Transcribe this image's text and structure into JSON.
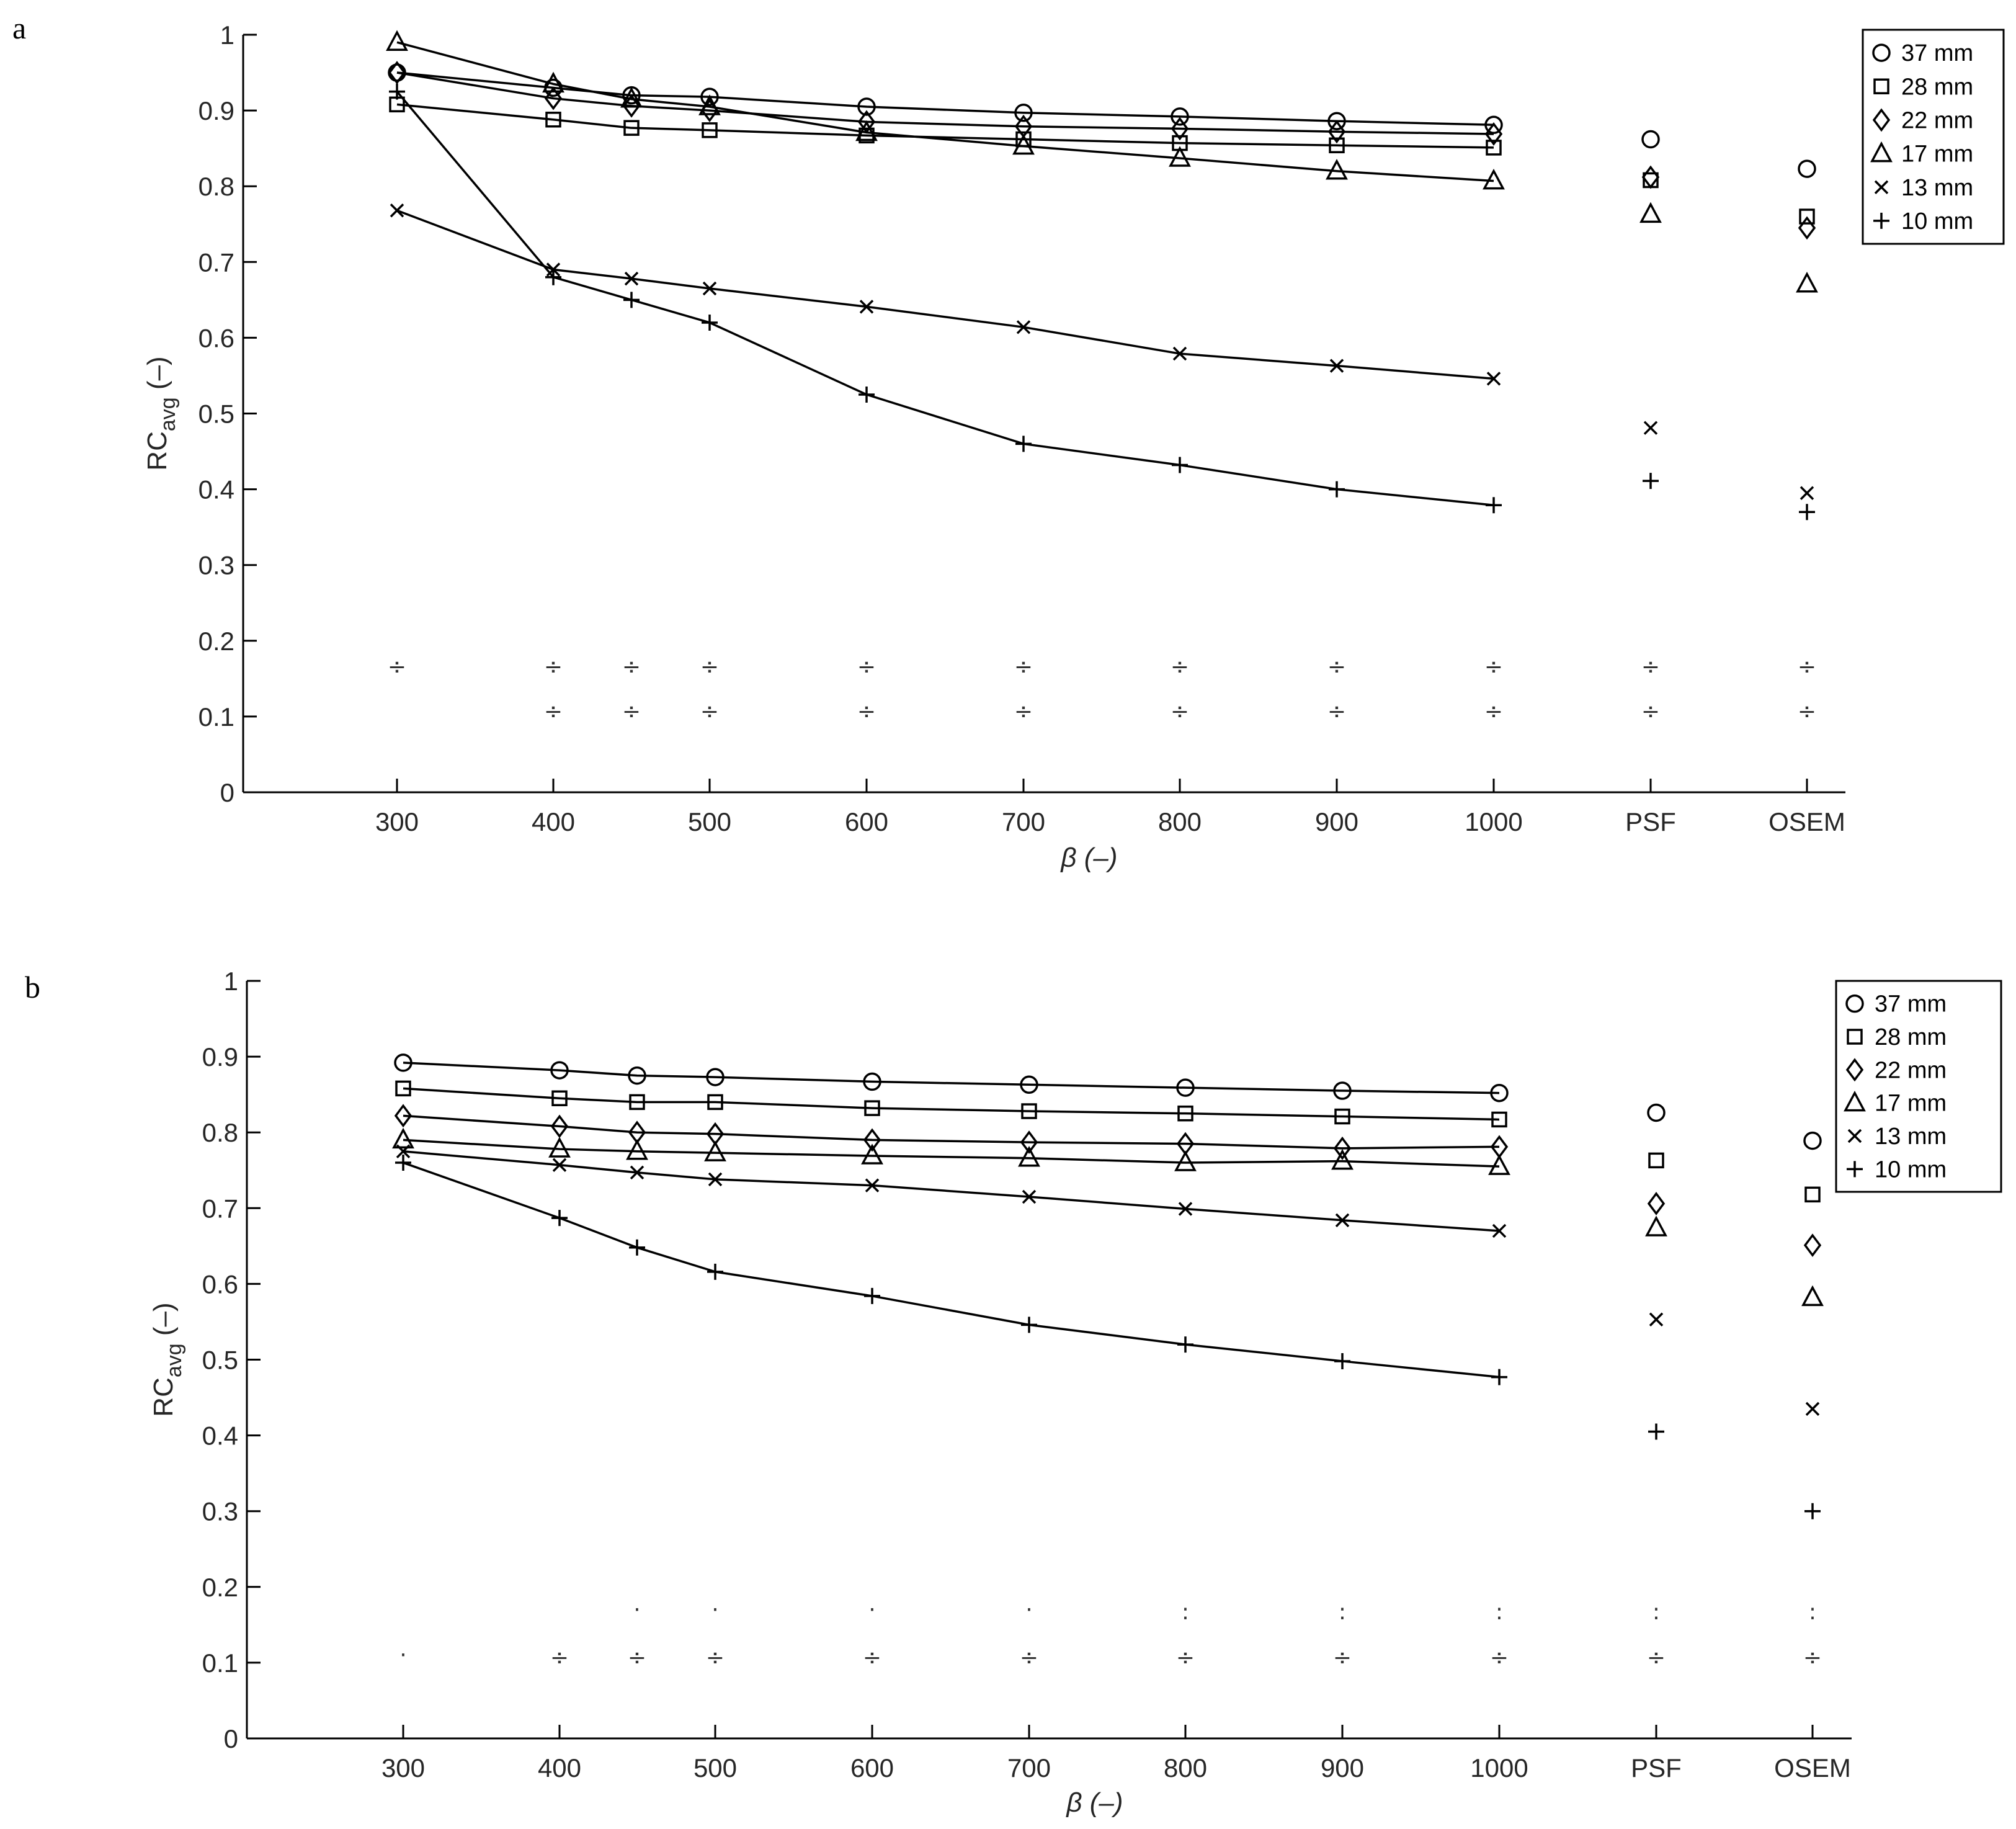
{
  "chart_data": [
    {
      "panel_label": "a",
      "type": "line",
      "x_categories": [
        "300",
        "400",
        "450",
        "500",
        "600",
        "700",
        "800",
        "900",
        "1000",
        "PSF",
        "OSEM"
      ],
      "x_tick_labels": [
        "300",
        "400",
        "500",
        "600",
        "700",
        "800",
        "900",
        "1000",
        "PSF",
        "OSEM"
      ],
      "xlabel": "β (–)",
      "ylabel": "RC",
      "ylabel_sub": "avg",
      "ylabel_unit": " (–)",
      "ylim": [
        0,
        1
      ],
      "yticks": [
        "0",
        "0.1",
        "0.2",
        "0.3",
        "0.4",
        "0.5",
        "0.6",
        "0.7",
        "0.8",
        "0.9",
        "1"
      ],
      "legend_position": "top-right",
      "series": [
        {
          "name": "37 mm",
          "marker": "circle",
          "values": [
            0.95,
            0.93,
            0.92,
            0.918,
            0.905,
            0.897,
            0.892,
            0.886,
            0.881,
            0.862,
            0.823
          ]
        },
        {
          "name": "28 mm",
          "marker": "square",
          "values": [
            0.908,
            0.888,
            0.877,
            0.874,
            0.867,
            0.862,
            0.857,
            0.854,
            0.851,
            0.808,
            0.76
          ]
        },
        {
          "name": "22 mm",
          "marker": "diamond",
          "values": [
            0.95,
            0.916,
            0.906,
            0.9,
            0.885,
            0.879,
            0.876,
            0.872,
            0.869,
            0.812,
            0.745
          ]
        },
        {
          "name": "17 mm",
          "marker": "triangle",
          "values": [
            0.99,
            0.935,
            0.915,
            0.905,
            0.871,
            0.853,
            0.837,
            0.82,
            0.807,
            0.763,
            0.671
          ]
        },
        {
          "name": "13 mm",
          "marker": "x",
          "values": [
            0.768,
            0.69,
            0.678,
            0.665,
            0.641,
            0.614,
            0.579,
            0.563,
            0.546,
            0.481,
            0.395
          ]
        },
        {
          "name": "10 mm",
          "marker": "plus",
          "values": [
            0.925,
            0.68,
            0.65,
            0.62,
            0.525,
            0.46,
            0.432,
            0.4,
            0.379,
            0.411,
            0.37
          ]
        }
      ],
      "significance_marks": [
        {
          "symbol": "÷",
          "y": 0.166,
          "x_indices": [
            0,
            1,
            2,
            3,
            4,
            5,
            6,
            7,
            8,
            9,
            10
          ]
        },
        {
          "symbol": "÷",
          "y": 0.107,
          "x_indices": [
            1,
            2,
            3,
            4,
            5,
            6,
            7,
            8,
            9,
            10
          ]
        }
      ]
    },
    {
      "panel_label": "b",
      "type": "line",
      "x_categories": [
        "300",
        "400",
        "450",
        "500",
        "600",
        "700",
        "800",
        "900",
        "1000",
        "PSF",
        "OSEM"
      ],
      "x_tick_labels": [
        "300",
        "400",
        "500",
        "600",
        "700",
        "800",
        "900",
        "1000",
        "PSF",
        "OSEM"
      ],
      "xlabel": "β (–)",
      "ylabel": "RC",
      "ylabel_sub": "avg",
      "ylabel_unit": " (–)",
      "ylim": [
        0,
        1
      ],
      "yticks": [
        "0",
        "0.1",
        "0.2",
        "0.3",
        "0.4",
        "0.5",
        "0.6",
        "0.7",
        "0.8",
        "0.9",
        "1"
      ],
      "legend_position": "top-right",
      "series": [
        {
          "name": "37 mm",
          "marker": "circle",
          "values": [
            0.892,
            0.882,
            0.875,
            0.873,
            0.867,
            0.863,
            0.859,
            0.855,
            0.852,
            0.826,
            0.789
          ]
        },
        {
          "name": "28 mm",
          "marker": "square",
          "values": [
            0.858,
            0.845,
            0.84,
            0.84,
            0.832,
            0.828,
            0.825,
            0.821,
            0.817,
            0.763,
            0.718
          ]
        },
        {
          "name": "22 mm",
          "marker": "diamond",
          "values": [
            0.822,
            0.808,
            0.8,
            0.798,
            0.79,
            0.787,
            0.785,
            0.779,
            0.781,
            0.706,
            0.651
          ]
        },
        {
          "name": "17 mm",
          "marker": "triangle",
          "values": [
            0.79,
            0.778,
            0.775,
            0.773,
            0.769,
            0.766,
            0.76,
            0.762,
            0.755,
            0.674,
            0.582
          ]
        },
        {
          "name": "13 mm",
          "marker": "x",
          "values": [
            0.775,
            0.757,
            0.747,
            0.738,
            0.73,
            0.715,
            0.699,
            0.684,
            0.67,
            0.553,
            0.435
          ]
        },
        {
          "name": "10 mm",
          "marker": "plus",
          "values": [
            0.76,
            0.687,
            0.648,
            0.616,
            0.584,
            0.546,
            0.52,
            0.498,
            0.477,
            0.405,
            0.3
          ]
        }
      ],
      "significance_marks": [
        {
          "symbol": "·",
          "y": 0.17,
          "x_indices": [
            2,
            3,
            4,
            5
          ]
        },
        {
          "symbol": ":",
          "y": 0.167,
          "x_indices": [
            6,
            7,
            8,
            9,
            10
          ]
        },
        {
          "symbol": "·",
          "y": 0.11,
          "x_indices": [
            0
          ]
        },
        {
          "symbol": "÷",
          "y": 0.107,
          "x_indices": [
            1,
            2,
            3,
            4,
            5,
            6,
            7,
            8,
            9,
            10
          ]
        }
      ]
    }
  ]
}
